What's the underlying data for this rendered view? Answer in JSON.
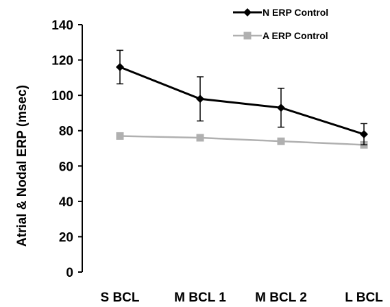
{
  "chart_data": {
    "type": "line",
    "title": "",
    "xlabel": "",
    "ylabel": "Atrial & Nodal ERP (msec)",
    "ylim": [
      0,
      140
    ],
    "yticks": [
      0,
      20,
      40,
      60,
      80,
      100,
      120,
      140
    ],
    "categories": [
      "S BCL",
      "M BCL 1",
      "M BCL 2",
      "L BCL"
    ],
    "grid": false,
    "legend": "top-right",
    "series": [
      {
        "name": "N ERP Control",
        "values": [
          116,
          98,
          93,
          78
        ],
        "error": [
          9.5,
          12.5,
          11,
          6
        ],
        "color": "#000000",
        "marker": "diamond"
      },
      {
        "name": "A ERP Control",
        "values": [
          77,
          76,
          74,
          72
        ],
        "color": "#b0b0b0",
        "marker": "square"
      }
    ]
  }
}
